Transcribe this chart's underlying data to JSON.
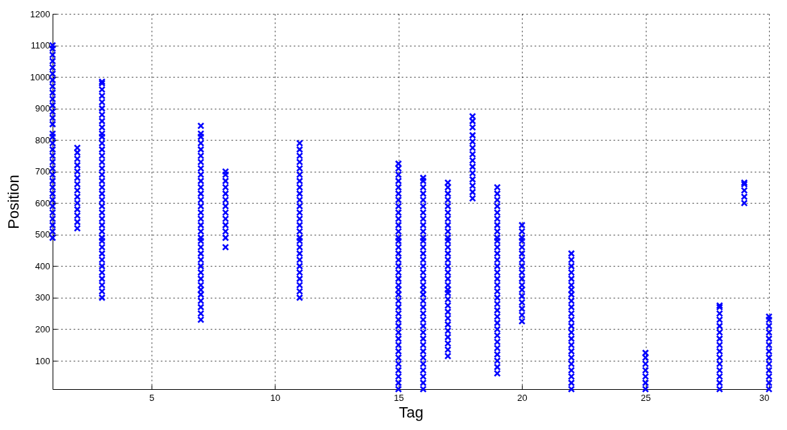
{
  "chart_data": {
    "type": "scatter",
    "xlabel": "Tag",
    "ylabel": "Position",
    "xlim": [
      1,
      30
    ],
    "ylim": [
      10,
      1200
    ],
    "xticks": [
      5,
      10,
      15,
      20,
      25,
      30
    ],
    "yticks": [
      100,
      200,
      300,
      400,
      500,
      600,
      700,
      800,
      900,
      1000,
      1100,
      1200
    ],
    "grid": true,
    "marker": "cross",
    "series": [
      {
        "color": "#0000ff",
        "x": [
          1,
          1,
          1,
          1,
          1,
          1,
          1,
          1,
          1,
          1,
          1,
          1,
          1,
          1,
          1,
          1,
          1,
          1,
          1,
          1,
          1,
          1,
          1,
          1,
          1,
          1,
          1,
          1,
          1,
          1,
          1,
          1
        ],
        "values": [
          490,
          510,
          530,
          550,
          570,
          590,
          610,
          630,
          650,
          670,
          690,
          710,
          730,
          750,
          770,
          790,
          810,
          820,
          850,
          870,
          890,
          910,
          930,
          950,
          970,
          990,
          1010,
          1030,
          1050,
          1070,
          1090,
          1100
        ]
      },
      {
        "color": "#0000ff",
        "x": [
          2,
          2,
          2,
          2,
          2,
          2,
          2,
          2,
          2,
          2,
          2,
          2,
          2,
          2
        ],
        "values": [
          520,
          540,
          560,
          580,
          600,
          620,
          640,
          660,
          680,
          700,
          720,
          740,
          760,
          775
        ]
      },
      {
        "color": "#0000ff",
        "x": [
          3,
          3,
          3,
          3,
          3,
          3,
          3,
          3,
          3,
          3,
          3,
          3,
          3,
          3,
          3,
          3,
          3,
          3,
          3,
          3,
          3,
          3,
          3,
          3,
          3,
          3,
          3,
          3,
          3,
          3,
          3,
          3,
          3,
          3,
          3,
          3,
          3
        ],
        "values": [
          300,
          320,
          340,
          360,
          380,
          400,
          420,
          440,
          460,
          480,
          490,
          510,
          530,
          550,
          570,
          590,
          610,
          630,
          650,
          670,
          690,
          710,
          730,
          750,
          770,
          790,
          810,
          820,
          840,
          860,
          880,
          900,
          920,
          940,
          960,
          980,
          985
        ]
      },
      {
        "color": "#0000ff",
        "x": [
          7,
          7,
          7,
          7,
          7,
          7,
          7,
          7,
          7,
          7,
          7,
          7,
          7,
          7,
          7,
          7,
          7,
          7,
          7,
          7,
          7,
          7,
          7,
          7,
          7,
          7,
          7,
          7,
          7,
          7,
          7,
          7,
          7
        ],
        "values": [
          230,
          250,
          270,
          290,
          310,
          325,
          340,
          360,
          380,
          400,
          420,
          440,
          460,
          480,
          490,
          510,
          530,
          550,
          570,
          590,
          610,
          630,
          650,
          670,
          690,
          710,
          730,
          750,
          770,
          790,
          810,
          820,
          845
        ]
      },
      {
        "color": "#0000ff",
        "x": [
          8,
          8,
          8,
          8,
          8,
          8,
          8,
          8,
          8,
          8,
          8,
          8,
          8
        ],
        "values": [
          460,
          490,
          510,
          530,
          550,
          570,
          590,
          610,
          630,
          650,
          670,
          690,
          700
        ]
      },
      {
        "color": "#0000ff",
        "x": [
          11,
          11,
          11,
          11,
          11,
          11,
          11,
          11,
          11,
          11,
          11,
          11,
          11,
          11,
          11,
          11,
          11,
          11,
          11,
          11,
          11,
          11,
          11,
          11,
          11,
          11
        ],
        "values": [
          300,
          320,
          340,
          360,
          380,
          400,
          420,
          440,
          460,
          480,
          490,
          510,
          530,
          550,
          570,
          590,
          610,
          630,
          650,
          670,
          690,
          710,
          730,
          750,
          770,
          790
        ]
      },
      {
        "color": "#0000ff",
        "x": [
          15,
          15,
          15,
          15,
          15,
          15,
          15,
          15,
          15,
          15,
          15,
          15,
          15,
          15,
          15,
          15,
          15,
          15,
          15,
          15,
          15,
          15,
          15,
          15,
          15,
          15,
          15,
          15,
          15,
          15,
          15,
          15,
          15,
          15,
          15,
          15,
          15,
          15
        ],
        "values": [
          10,
          30,
          50,
          70,
          90,
          110,
          130,
          150,
          170,
          190,
          210,
          230,
          250,
          270,
          290,
          310,
          325,
          340,
          360,
          380,
          400,
          420,
          440,
          460,
          480,
          490,
          510,
          530,
          550,
          570,
          590,
          610,
          630,
          650,
          670,
          690,
          710,
          725
        ]
      },
      {
        "color": "#0000ff",
        "x": [
          16,
          16,
          16,
          16,
          16,
          16,
          16,
          16,
          16,
          16,
          16,
          16,
          16,
          16,
          16,
          16,
          16,
          16,
          16,
          16,
          16,
          16,
          16,
          16,
          16,
          16,
          16,
          16,
          16,
          16,
          16,
          16,
          16,
          16,
          16,
          16
        ],
        "values": [
          10,
          30,
          50,
          70,
          90,
          110,
          130,
          150,
          170,
          190,
          210,
          230,
          250,
          270,
          290,
          310,
          325,
          340,
          360,
          380,
          400,
          420,
          440,
          460,
          480,
          490,
          510,
          530,
          550,
          570,
          590,
          610,
          630,
          650,
          670,
          680
        ]
      },
      {
        "color": "#0000ff",
        "x": [
          17,
          17,
          17,
          17,
          17,
          17,
          17,
          17,
          17,
          17,
          17,
          17,
          17,
          17,
          17,
          17,
          17,
          17,
          17,
          17,
          17,
          17,
          17,
          17,
          17,
          17,
          17,
          17,
          17,
          17
        ],
        "values": [
          115,
          135,
          155,
          175,
          195,
          215,
          235,
          255,
          275,
          295,
          315,
          325,
          340,
          360,
          380,
          400,
          420,
          440,
          460,
          480,
          490,
          510,
          530,
          550,
          570,
          590,
          610,
          630,
          650,
          665
        ]
      },
      {
        "color": "#0000ff",
        "x": [
          18,
          18,
          18,
          18,
          18,
          18,
          18,
          18,
          18,
          18,
          18,
          18,
          18,
          18
        ],
        "values": [
          615,
          635,
          655,
          675,
          695,
          715,
          735,
          755,
          775,
          795,
          815,
          840,
          860,
          875
        ]
      },
      {
        "color": "#0000ff",
        "x": [
          19,
          19,
          19,
          19,
          19,
          19,
          19,
          19,
          19,
          19,
          19,
          19,
          19,
          19,
          19,
          19,
          19,
          19,
          19,
          19,
          19,
          19,
          19,
          19,
          19,
          19,
          19,
          19,
          19,
          19,
          19
        ],
        "values": [
          60,
          80,
          100,
          120,
          140,
          160,
          180,
          200,
          220,
          240,
          260,
          280,
          300,
          320,
          340,
          360,
          380,
          400,
          420,
          440,
          460,
          480,
          490,
          510,
          530,
          550,
          570,
          590,
          610,
          630,
          650
        ]
      },
      {
        "color": "#0000ff",
        "x": [
          20,
          20,
          20,
          20,
          20,
          20,
          20,
          20,
          20,
          20,
          20,
          20,
          20,
          20,
          20,
          20,
          20
        ],
        "values": [
          225,
          245,
          265,
          285,
          305,
          325,
          340,
          360,
          380,
          400,
          420,
          440,
          460,
          480,
          490,
          510,
          530
        ]
      },
      {
        "color": "#0000ff",
        "x": [
          22,
          22,
          22,
          22,
          22,
          22,
          22,
          22,
          22,
          22,
          22,
          22,
          22,
          22,
          22,
          22,
          22,
          22,
          22,
          22,
          22,
          22,
          22
        ],
        "values": [
          10,
          30,
          50,
          70,
          90,
          110,
          130,
          150,
          170,
          190,
          210,
          230,
          250,
          270,
          290,
          310,
          325,
          340,
          360,
          380,
          400,
          420,
          440
        ]
      },
      {
        "color": "#0000ff",
        "x": [
          25,
          25,
          25,
          25,
          25,
          25,
          25
        ],
        "values": [
          10,
          30,
          50,
          70,
          90,
          110,
          125
        ]
      },
      {
        "color": "#0000ff",
        "x": [
          28,
          28,
          28,
          28,
          28,
          28,
          28,
          28,
          28,
          28,
          28,
          28,
          28,
          28,
          28
        ],
        "values": [
          10,
          30,
          50,
          70,
          90,
          110,
          130,
          150,
          170,
          190,
          210,
          230,
          250,
          270,
          275
        ]
      },
      {
        "color": "#0000ff",
        "x": [
          29,
          29,
          29,
          29,
          29
        ],
        "values": [
          600,
          620,
          640,
          660,
          665
        ]
      },
      {
        "color": "#0000ff",
        "x": [
          30,
          30,
          30,
          30,
          30,
          30,
          30,
          30,
          30,
          30,
          30,
          30,
          30
        ],
        "values": [
          10,
          30,
          50,
          70,
          90,
          110,
          130,
          150,
          170,
          190,
          210,
          230,
          240
        ]
      }
    ]
  }
}
